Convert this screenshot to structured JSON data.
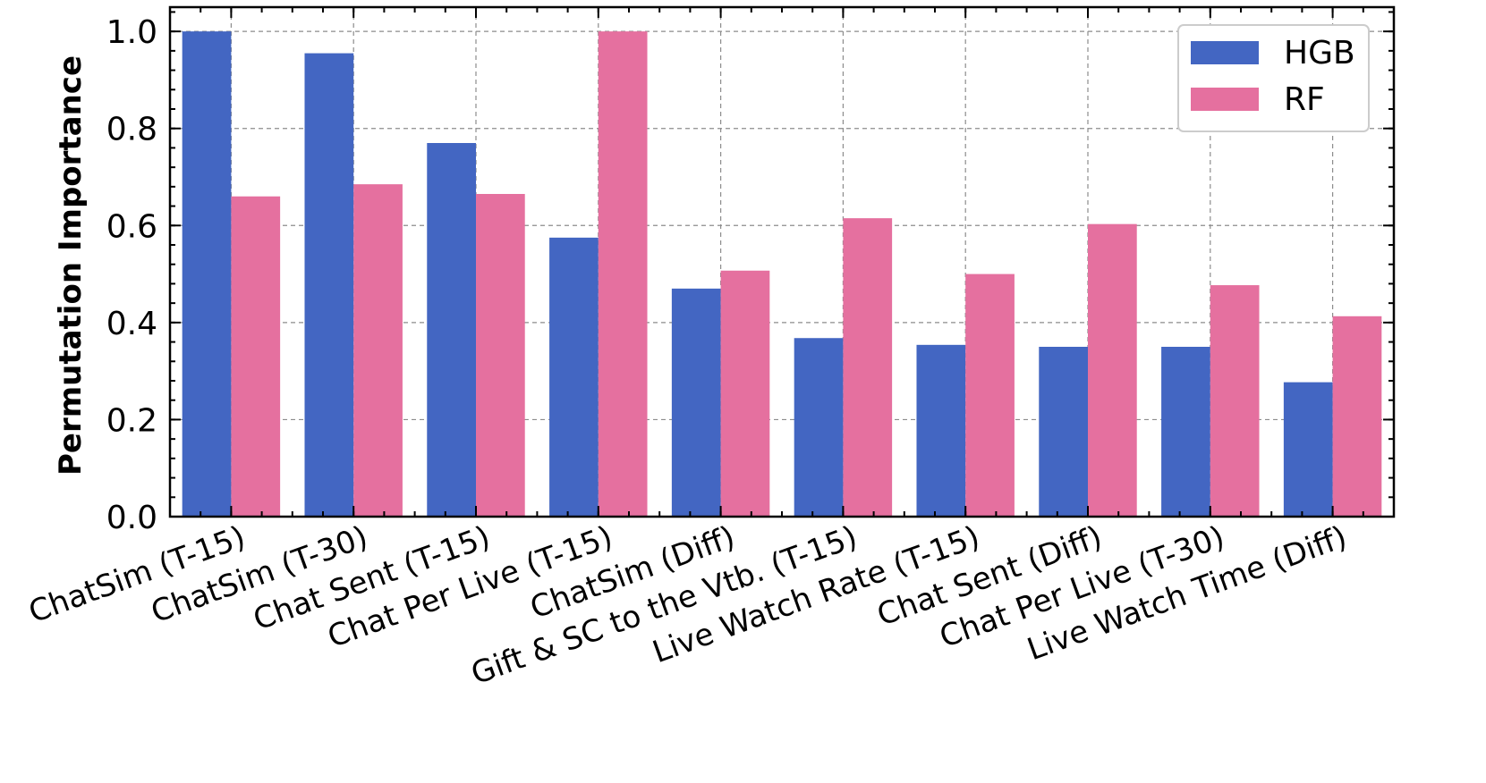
{
  "chart_data": {
    "type": "bar",
    "title": "",
    "xlabel": "",
    "ylabel": "Permutation Importance",
    "ylim": [
      0,
      1.05
    ],
    "yticks": [
      "0.0",
      "0.2",
      "0.4",
      "0.6",
      "0.8",
      "1.0"
    ],
    "ytick_values": [
      0,
      0.2,
      0.4,
      0.6,
      0.8,
      1.0
    ],
    "grid": true,
    "legend_position": "top-right",
    "categories": [
      "ChatSim (T-15)",
      "ChatSim (T-30)",
      "Chat Sent (T-15)",
      "Chat Per Live (T-15)",
      "ChatSim (Diff)",
      "Gift & SC to the Vtb. (T-15)",
      "Live Watch Rate (T-15)",
      "Chat Sent (Diff)",
      "Chat Per Live (T-30)",
      "Live Watch Time (Diff)"
    ],
    "series": [
      {
        "name": "HGB",
        "color": "#4366c2",
        "values": [
          1.0,
          0.955,
          0.77,
          0.575,
          0.47,
          0.368,
          0.354,
          0.35,
          0.35,
          0.277
        ]
      },
      {
        "name": "RF",
        "color": "#e5709f",
        "values": [
          0.66,
          0.685,
          0.665,
          1.0,
          0.507,
          0.615,
          0.5,
          0.603,
          0.477,
          0.413
        ]
      }
    ]
  }
}
